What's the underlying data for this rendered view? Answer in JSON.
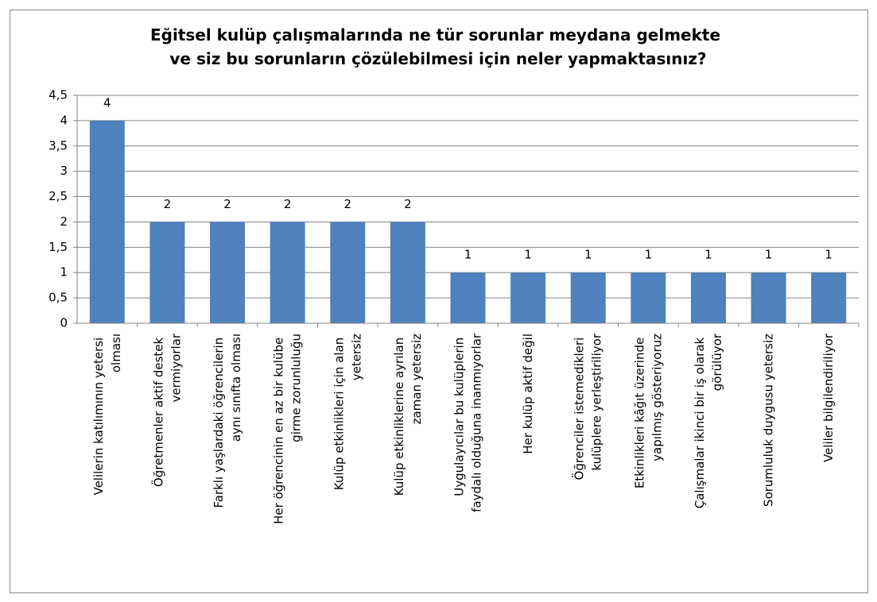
{
  "chart_data": {
    "type": "bar",
    "title": "Eğitsel kulüp çalışmalarında ne tür sorunlar meydana gelmekte ve siz bu sorunların çözülebilmesi için neler yapmaktasınız?",
    "categories": [
      "Velilerin katılımının yetersi olması",
      "Öğretmenler aktif destek vermiyorlar",
      "Farklı yaşlardaki öğrencilerin aynı sınıfta olması",
      "Her öğrencinin en az bir kulübe girme zorunluluğu",
      "Kulüp etkinlikleri için alan yetersiz",
      "Kulüp etkinliklerine ayrılan zaman yetersiz",
      "Uygulayıcılar bu kulüplerin faydalı olduğuna inanmıyorlar",
      "Her kulüp aktif değil",
      "Öğrenciler istemedikleri kulüplere yerleştiriliyor",
      "Etkinlikleri kâğıt üzerinde yapılmış gösteriyoruz",
      "Çalışmalar ikinci bir iş olarak görülüyor",
      "Sorumluluk duygusu yetersiz",
      "Veliler bilgilendiriliyor"
    ],
    "values": [
      4,
      2,
      2,
      2,
      2,
      2,
      1,
      1,
      1,
      1,
      1,
      1,
      1
    ],
    "color": "#4f81bd",
    "ylim": [
      0,
      4.5
    ],
    "yticks": [
      0,
      {
        "value": 0.5,
        "label": "0,5"
      },
      1,
      {
        "value": 1.5,
        "label": "1,5"
      },
      2,
      {
        "value": 2.5,
        "label": "2,5"
      },
      3,
      {
        "value": 3.5,
        "label": "3,5"
      },
      4,
      {
        "value": 4.5,
        "label": "4,5"
      }
    ],
    "grid": true
  }
}
